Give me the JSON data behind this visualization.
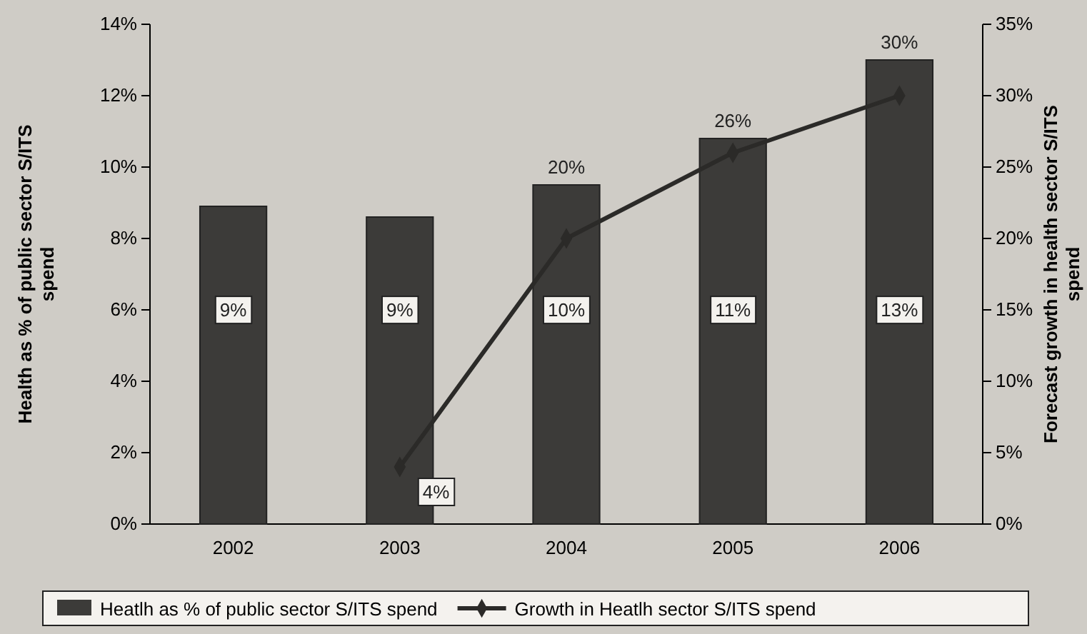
{
  "chart_data": {
    "type": "bar",
    "categories": [
      "2002",
      "2003",
      "2004",
      "2005",
      "2006"
    ],
    "ylabel": "Health as % of public sector S/ITS spend",
    "y2label": "Forecast growth in health sector S/ITS spend",
    "ylim": [
      0,
      14
    ],
    "yticks": [
      {
        "value": 0,
        "label": "0%"
      },
      {
        "value": 2,
        "label": "2%"
      },
      {
        "value": 4,
        "label": "4%"
      },
      {
        "value": 6,
        "label": "6%"
      },
      {
        "value": 8,
        "label": "8%"
      },
      {
        "value": 10,
        "label": "10%"
      },
      {
        "value": 12,
        "label": "12%"
      },
      {
        "value": 14,
        "label": "14%"
      }
    ],
    "y2lim": [
      0,
      35
    ],
    "y2ticks": [
      {
        "value": 0,
        "label": "0%"
      },
      {
        "value": 5,
        "label": "5%"
      },
      {
        "value": 10,
        "label": "10%"
      },
      {
        "value": 15,
        "label": "15%"
      },
      {
        "value": 20,
        "label": "20%"
      },
      {
        "value": 25,
        "label": "25%"
      },
      {
        "value": 30,
        "label": "30%"
      },
      {
        "value": 35,
        "label": "35%"
      }
    ],
    "series": [
      {
        "name": "Heatlh as % of public sector S/ITS spend",
        "color": "#3c3b39",
        "values": [
          8.9,
          8.6,
          9.5,
          10.8,
          13
        ],
        "value_labels": [
          "9%",
          "9%",
          "10%",
          "11%",
          "13%"
        ]
      },
      {
        "name": "Growth in Heatlh sector S/ITS spend",
        "type": "line",
        "axis": "y2",
        "color": "#2b2a28",
        "marker": "diamond",
        "values": [
          null,
          4,
          20,
          26,
          30
        ],
        "value_labels": [
          null,
          "4%",
          "20%",
          "26%",
          "30%"
        ]
      }
    ],
    "legend": "bottom",
    "grid": false
  }
}
